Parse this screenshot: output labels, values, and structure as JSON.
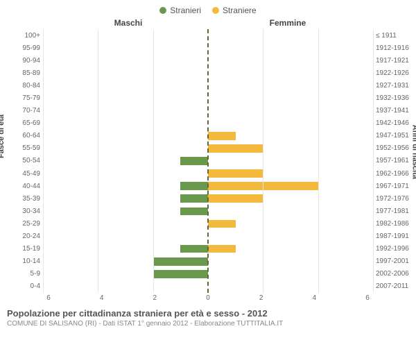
{
  "legend": {
    "male": {
      "label": "Stranieri",
      "color": "#6a994e"
    },
    "female": {
      "label": "Straniere",
      "color": "#f3b93c"
    }
  },
  "sides": {
    "left": "Maschi",
    "right": "Femmine"
  },
  "axis_labels": {
    "left": "Fasce di età",
    "right": "Anni di nascita"
  },
  "chart": {
    "type": "population-pyramid",
    "background_color": "#ffffff",
    "grid_color": "#e6e6e6",
    "center_line_color": "#666633",
    "x_max": 6,
    "x_ticks": [
      6,
      4,
      2,
      0,
      2,
      4,
      6
    ],
    "rows": [
      {
        "age": "100+",
        "birth": "≤ 1911",
        "m": 0,
        "f": 0
      },
      {
        "age": "95-99",
        "birth": "1912-1916",
        "m": 0,
        "f": 0
      },
      {
        "age": "90-94",
        "birth": "1917-1921",
        "m": 0,
        "f": 0
      },
      {
        "age": "85-89",
        "birth": "1922-1926",
        "m": 0,
        "f": 0
      },
      {
        "age": "80-84",
        "birth": "1927-1931",
        "m": 0,
        "f": 0
      },
      {
        "age": "75-79",
        "birth": "1932-1936",
        "m": 0,
        "f": 0
      },
      {
        "age": "70-74",
        "birth": "1937-1941",
        "m": 0,
        "f": 0
      },
      {
        "age": "65-69",
        "birth": "1942-1946",
        "m": 0,
        "f": 0
      },
      {
        "age": "60-64",
        "birth": "1947-1951",
        "m": 0,
        "f": 1
      },
      {
        "age": "55-59",
        "birth": "1952-1956",
        "m": 0,
        "f": 2
      },
      {
        "age": "50-54",
        "birth": "1957-1961",
        "m": 1,
        "f": 0
      },
      {
        "age": "45-49",
        "birth": "1962-1966",
        "m": 0,
        "f": 2
      },
      {
        "age": "40-44",
        "birth": "1967-1971",
        "m": 1,
        "f": 4
      },
      {
        "age": "35-39",
        "birth": "1972-1976",
        "m": 1,
        "f": 2
      },
      {
        "age": "30-34",
        "birth": "1977-1981",
        "m": 1,
        "f": 0
      },
      {
        "age": "25-29",
        "birth": "1982-1986",
        "m": 0,
        "f": 1
      },
      {
        "age": "20-24",
        "birth": "1987-1991",
        "m": 0,
        "f": 0
      },
      {
        "age": "15-19",
        "birth": "1992-1996",
        "m": 1,
        "f": 1
      },
      {
        "age": "10-14",
        "birth": "1997-2001",
        "m": 2,
        "f": 0
      },
      {
        "age": "5-9",
        "birth": "2002-2006",
        "m": 2,
        "f": 0
      },
      {
        "age": "0-4",
        "birth": "2007-2011",
        "m": 0,
        "f": 0
      }
    ],
    "bar_color_m": "#6a994e",
    "bar_color_f": "#f3b93c",
    "tick_color": "#666666",
    "tick_fontsize": 10,
    "title_fontsize": 13
  },
  "caption": {
    "title": "Popolazione per cittadinanza straniera per età e sesso - 2012",
    "subtitle": "COMUNE DI SALISANO (RI) - Dati ISTAT 1° gennaio 2012 - Elaborazione TUTTITALIA.IT"
  }
}
